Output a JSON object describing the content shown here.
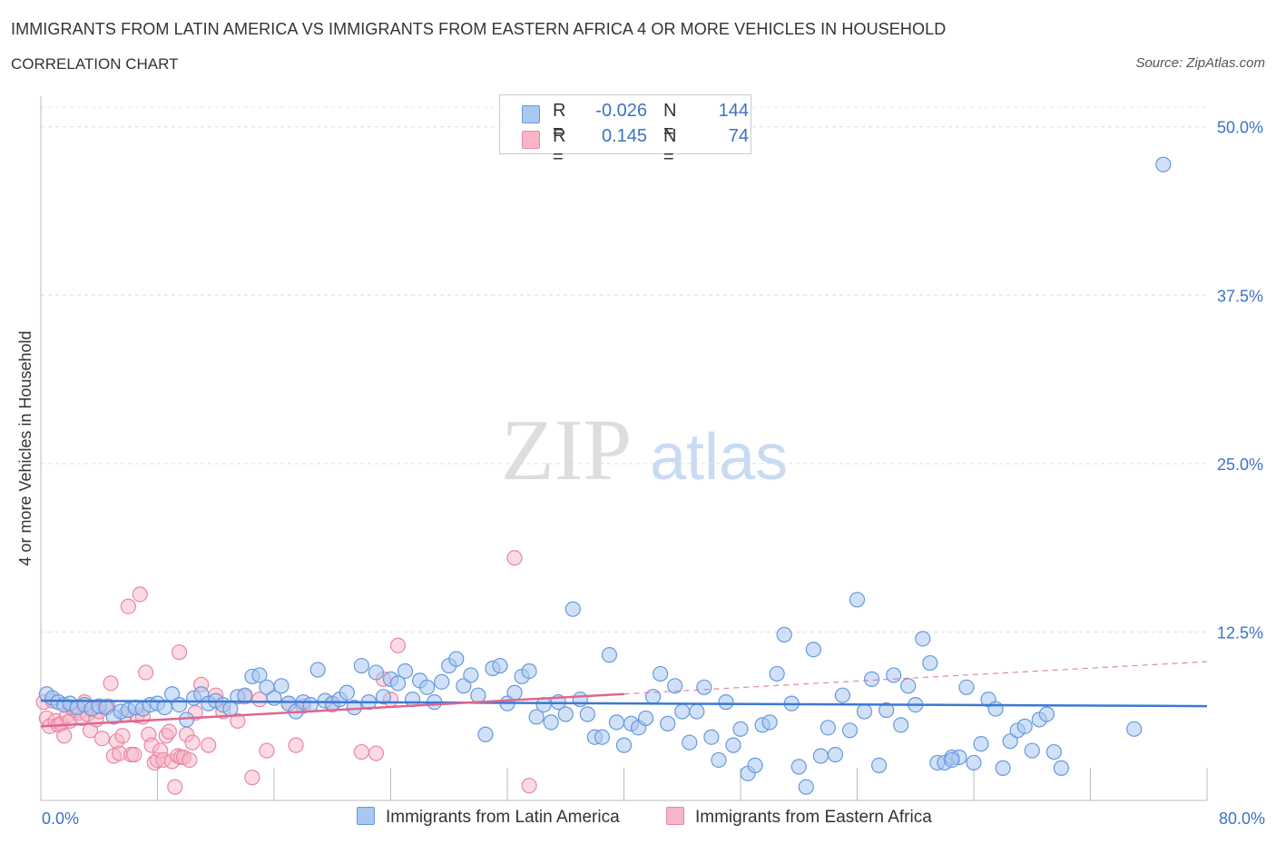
{
  "title": "IMMIGRANTS FROM LATIN AMERICA VS IMMIGRANTS FROM EASTERN AFRICA 4 OR MORE VEHICLES IN HOUSEHOLD",
  "subtitle": "CORRELATION CHART",
  "source": "Source: ZipAtlas.com",
  "watermark": {
    "zip": "ZIP",
    "atlas": "atlas"
  },
  "legend": {
    "r_label": "R =",
    "n_label": "N =",
    "series": [
      {
        "r": "-0.026",
        "n": "144"
      },
      {
        "r": "0.145",
        "n": "74"
      }
    ]
  },
  "colors": {
    "blue_fill": "#a9c8f0",
    "blue_stroke": "#6699dd",
    "blue_line": "#3a78d4",
    "pink_fill": "#f6b6c8",
    "pink_stroke": "#ea86a6",
    "pink_line": "#e0668e",
    "axis_label": "#3b73c4"
  },
  "chart_data": {
    "type": "scatter",
    "title": "IMMIGRANTS FROM LATIN AMERICA VS IMMIGRANTS FROM EASTERN AFRICA 4 OR MORE VEHICLES IN HOUSEHOLD",
    "xlabel": "",
    "ylabel": "4 or more Vehicles in Household",
    "xlim": [
      0,
      80
    ],
    "ylim": [
      0,
      52
    ],
    "x_tick_labels": [
      "0.0%",
      "80.0%"
    ],
    "y_ticks": [
      12.5,
      25,
      37.5,
      50
    ],
    "y_tick_labels": [
      "12.5%",
      "25.0%",
      "37.5%",
      "50.0%"
    ],
    "grid": true,
    "legend_position": "bottom",
    "series": [
      {
        "name": "Immigrants from Latin America",
        "color": "#6699dd",
        "trend": {
          "x": [
            0,
            80
          ],
          "y": [
            7.4,
            7.0
          ]
        },
        "points": [
          [
            0.4,
            7.9
          ],
          [
            0.8,
            7.6
          ],
          [
            1.2,
            7.3
          ],
          [
            1.6,
            7.1
          ],
          [
            2.0,
            7.2
          ],
          [
            2.5,
            6.9
          ],
          [
            3.0,
            7.1
          ],
          [
            3.5,
            6.8
          ],
          [
            4.0,
            7.0
          ],
          [
            4.5,
            6.9
          ],
          [
            5.0,
            6.2
          ],
          [
            5.5,
            6.6
          ],
          [
            6.0,
            6.7
          ],
          [
            6.5,
            6.9
          ],
          [
            7.0,
            6.8
          ],
          [
            7.5,
            7.1
          ],
          [
            8.0,
            7.2
          ],
          [
            8.5,
            6.9
          ],
          [
            9.0,
            7.9
          ],
          [
            9.5,
            7.1
          ],
          [
            10.0,
            6.0
          ],
          [
            10.5,
            7.6
          ],
          [
            11.0,
            7.9
          ],
          [
            11.5,
            7.2
          ],
          [
            12.0,
            7.4
          ],
          [
            12.5,
            7.1
          ],
          [
            13.0,
            6.8
          ],
          [
            13.5,
            7.7
          ],
          [
            14.0,
            7.8
          ],
          [
            14.5,
            9.2
          ],
          [
            15.0,
            9.3
          ],
          [
            15.5,
            8.4
          ],
          [
            16.0,
            7.6
          ],
          [
            16.5,
            8.5
          ],
          [
            17.0,
            7.2
          ],
          [
            17.5,
            6.6
          ],
          [
            18.0,
            7.3
          ],
          [
            18.5,
            7.1
          ],
          [
            19.0,
            9.7
          ],
          [
            19.5,
            7.4
          ],
          [
            20.0,
            7.2
          ],
          [
            20.5,
            7.5
          ],
          [
            21.0,
            8.0
          ],
          [
            21.5,
            6.9
          ],
          [
            22.0,
            10.0
          ],
          [
            22.5,
            7.3
          ],
          [
            23.0,
            9.5
          ],
          [
            23.5,
            7.7
          ],
          [
            24.0,
            9.0
          ],
          [
            24.5,
            8.7
          ],
          [
            25.0,
            9.6
          ],
          [
            25.5,
            7.5
          ],
          [
            26.0,
            8.9
          ],
          [
            26.5,
            8.4
          ],
          [
            27.0,
            7.3
          ],
          [
            27.5,
            8.8
          ],
          [
            28.0,
            10.0
          ],
          [
            28.5,
            10.5
          ],
          [
            29.0,
            8.5
          ],
          [
            29.5,
            9.3
          ],
          [
            30.0,
            7.8
          ],
          [
            30.5,
            4.9
          ],
          [
            31.0,
            9.8
          ],
          [
            31.5,
            10.0
          ],
          [
            32.0,
            7.2
          ],
          [
            32.5,
            8.0
          ],
          [
            33.0,
            9.2
          ],
          [
            33.5,
            9.6
          ],
          [
            34.0,
            6.2
          ],
          [
            34.5,
            7.1
          ],
          [
            35.0,
            5.8
          ],
          [
            35.5,
            7.3
          ],
          [
            36.0,
            6.4
          ],
          [
            36.5,
            14.2
          ],
          [
            37.0,
            7.5
          ],
          [
            37.5,
            6.4
          ],
          [
            38.0,
            4.7
          ],
          [
            38.5,
            4.7
          ],
          [
            39.0,
            10.8
          ],
          [
            39.5,
            5.8
          ],
          [
            40.0,
            4.1
          ],
          [
            40.5,
            5.7
          ],
          [
            41.0,
            5.4
          ],
          [
            41.5,
            6.1
          ],
          [
            42.0,
            7.7
          ],
          [
            42.5,
            9.4
          ],
          [
            43.0,
            5.7
          ],
          [
            43.5,
            8.5
          ],
          [
            44.0,
            6.6
          ],
          [
            44.5,
            4.3
          ],
          [
            45.0,
            6.6
          ],
          [
            45.5,
            8.4
          ],
          [
            46.0,
            4.7
          ],
          [
            46.5,
            3.0
          ],
          [
            47.0,
            7.3
          ],
          [
            47.5,
            4.1
          ],
          [
            48.0,
            5.3
          ],
          [
            48.5,
            2.0
          ],
          [
            49.0,
            2.6
          ],
          [
            49.5,
            5.6
          ],
          [
            50.0,
            5.8
          ],
          [
            50.5,
            9.4
          ],
          [
            51.0,
            12.3
          ],
          [
            51.5,
            7.2
          ],
          [
            52.0,
            2.5
          ],
          [
            52.5,
            1.0
          ],
          [
            53.0,
            11.2
          ],
          [
            53.5,
            3.3
          ],
          [
            54.0,
            5.4
          ],
          [
            54.5,
            3.4
          ],
          [
            55.0,
            7.8
          ],
          [
            55.5,
            5.2
          ],
          [
            56.0,
            14.9
          ],
          [
            56.5,
            6.6
          ],
          [
            57.0,
            9.0
          ],
          [
            57.5,
            2.6
          ],
          [
            58.0,
            6.7
          ],
          [
            58.5,
            9.3
          ],
          [
            59.0,
            5.6
          ],
          [
            59.5,
            8.5
          ],
          [
            60.0,
            7.1
          ],
          [
            60.5,
            12.0
          ],
          [
            61.0,
            10.2
          ],
          [
            61.5,
            2.8
          ],
          [
            62.0,
            2.8
          ],
          [
            62.5,
            3.2
          ],
          [
            63.0,
            3.2
          ],
          [
            63.5,
            8.4
          ],
          [
            64.0,
            2.8
          ],
          [
            64.5,
            4.2
          ],
          [
            65.0,
            7.5
          ],
          [
            65.5,
            6.8
          ],
          [
            66.0,
            2.4
          ],
          [
            66.5,
            4.4
          ],
          [
            67.0,
            5.2
          ],
          [
            67.5,
            5.5
          ],
          [
            68.0,
            3.7
          ],
          [
            68.5,
            6.0
          ],
          [
            69.0,
            6.4
          ],
          [
            69.5,
            3.6
          ],
          [
            70.0,
            2.4
          ],
          [
            75.0,
            5.3
          ],
          [
            77.0,
            47.2
          ],
          [
            62.5,
            3.0
          ]
        ]
      },
      {
        "name": "Immigrants from Eastern Africa",
        "color": "#ea86a6",
        "trend": {
          "x": [
            0,
            40
          ],
          "y": [
            5.5,
            7.9
          ]
        },
        "trend_dashed": {
          "x": [
            40,
            80
          ],
          "y": [
            7.9,
            10.3
          ]
        },
        "points": [
          [
            0.2,
            7.3
          ],
          [
            0.4,
            6.1
          ],
          [
            0.6,
            5.5
          ],
          [
            0.8,
            7.4
          ],
          [
            1.0,
            5.9
          ],
          [
            1.2,
            5.6
          ],
          [
            1.4,
            5.7
          ],
          [
            1.6,
            4.8
          ],
          [
            1.8,
            6.3
          ],
          [
            2.0,
            5.9
          ],
          [
            2.2,
            6.8
          ],
          [
            2.4,
            6.7
          ],
          [
            2.6,
            6.5
          ],
          [
            2.8,
            6.1
          ],
          [
            3.0,
            7.3
          ],
          [
            3.2,
            6.4
          ],
          [
            3.4,
            5.2
          ],
          [
            3.6,
            6.9
          ],
          [
            3.8,
            6.0
          ],
          [
            4.0,
            6.6
          ],
          [
            4.2,
            4.6
          ],
          [
            4.4,
            6.9
          ],
          [
            4.6,
            7.0
          ],
          [
            4.8,
            8.7
          ],
          [
            5.0,
            3.3
          ],
          [
            5.2,
            4.4
          ],
          [
            5.4,
            3.5
          ],
          [
            5.6,
            4.8
          ],
          [
            5.8,
            6.4
          ],
          [
            6.0,
            14.4
          ],
          [
            6.2,
            3.4
          ],
          [
            6.4,
            3.4
          ],
          [
            6.6,
            6.3
          ],
          [
            6.8,
            15.3
          ],
          [
            7.0,
            6.2
          ],
          [
            7.2,
            9.5
          ],
          [
            7.4,
            4.9
          ],
          [
            7.6,
            4.1
          ],
          [
            7.8,
            2.8
          ],
          [
            8.0,
            3.0
          ],
          [
            8.2,
            3.7
          ],
          [
            8.4,
            3.0
          ],
          [
            8.6,
            4.8
          ],
          [
            8.8,
            5.1
          ],
          [
            9.0,
            2.9
          ],
          [
            9.2,
            1.0
          ],
          [
            9.4,
            3.3
          ],
          [
            9.6,
            3.2
          ],
          [
            9.8,
            3.2
          ],
          [
            10.0,
            4.9
          ],
          [
            10.2,
            3.0
          ],
          [
            10.4,
            4.3
          ],
          [
            9.5,
            11.0
          ],
          [
            10.6,
            6.5
          ],
          [
            11.0,
            8.6
          ],
          [
            11.5,
            4.1
          ],
          [
            12.0,
            7.8
          ],
          [
            12.5,
            6.6
          ],
          [
            13.5,
            5.9
          ],
          [
            14.0,
            7.7
          ],
          [
            14.5,
            1.7
          ],
          [
            15.0,
            7.5
          ],
          [
            15.5,
            3.7
          ],
          [
            17.0,
            7.2
          ],
          [
            17.5,
            4.1
          ],
          [
            18.0,
            7.0
          ],
          [
            20.0,
            7.1
          ],
          [
            22.0,
            3.6
          ],
          [
            23.0,
            3.5
          ],
          [
            23.5,
            9.0
          ],
          [
            24.5,
            11.5
          ],
          [
            32.5,
            18.0
          ],
          [
            33.5,
            1.1
          ],
          [
            24.0,
            7.5
          ]
        ]
      }
    ]
  },
  "bottom_legend": [
    {
      "label": "Immigrants from Latin America"
    },
    {
      "label": "Immigrants from Eastern Africa"
    }
  ]
}
